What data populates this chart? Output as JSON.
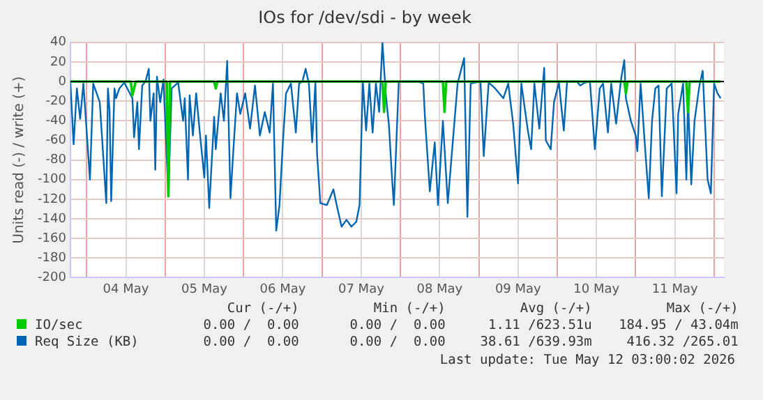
{
  "chart_data": {
    "type": "line",
    "title": "IOs for /dev/sdi - by week",
    "ylabel": "Units read (-) / write (+)",
    "xlim": [
      "2026-05-03T19:00",
      "2026-05-12T03:00"
    ],
    "xticks": [
      {
        "value": "2026-05-04T00:00",
        "label": null
      },
      {
        "value": "2026-05-04T12:00",
        "label": "04 May"
      },
      {
        "value": "2026-05-05T00:00",
        "label": null
      },
      {
        "value": "2026-05-05T12:00",
        "label": "05 May"
      },
      {
        "value": "2026-05-06T00:00",
        "label": null
      },
      {
        "value": "2026-05-06T12:00",
        "label": "06 May"
      },
      {
        "value": "2026-05-07T00:00",
        "label": null
      },
      {
        "value": "2026-05-07T12:00",
        "label": "07 May"
      },
      {
        "value": "2026-05-08T00:00",
        "label": null
      },
      {
        "value": "2026-05-08T12:00",
        "label": "08 May"
      },
      {
        "value": "2026-05-09T00:00",
        "label": null
      },
      {
        "value": "2026-05-09T12:00",
        "label": "09 May"
      },
      {
        "value": "2026-05-10T00:00",
        "label": null
      },
      {
        "value": "2026-05-10T12:00",
        "label": "10 May"
      },
      {
        "value": "2026-05-11T00:00",
        "label": null
      },
      {
        "value": "2026-05-11T12:00",
        "label": "11 May"
      },
      {
        "value": "2026-05-12T00:00",
        "label": null
      }
    ],
    "ylim": [
      -200,
      40
    ],
    "yticks": [
      -200,
      -180,
      -160,
      -140,
      -120,
      -100,
      -80,
      -60,
      -40,
      -20,
      0,
      20,
      40
    ],
    "grid": true,
    "legend": "bottom",
    "marker": "none",
    "line_style": "solid",
    "ref_lines": [
      {
        "axis": "y",
        "value": 0,
        "color": "#000000"
      }
    ],
    "series": [
      {
        "name": "IO/sec",
        "color": "#00cc00",
        "x": [
          "2026-05-03T19:00",
          "2026-05-04T13:30",
          "2026-05-04T14:00",
          "2026-05-04T15:00",
          "2026-05-05T00:30",
          "2026-05-05T01:00",
          "2026-05-05T01:30",
          "2026-05-05T15:00",
          "2026-05-05T15:30",
          "2026-05-05T16:00",
          "2026-05-07T18:30",
          "2026-05-07T19:00",
          "2026-05-07T19:30",
          "2026-05-08T13:00",
          "2026-05-08T13:30",
          "2026-05-08T14:00",
          "2026-05-10T20:30",
          "2026-05-10T21:00",
          "2026-05-10T21:30",
          "2026-05-11T15:30",
          "2026-05-11T16:00",
          "2026-05-11T16:30",
          "2026-05-12T02:00"
        ],
        "values": [
          0,
          0,
          -14,
          0,
          0,
          -117,
          0,
          0,
          -7,
          0,
          0,
          -31,
          0,
          0,
          -31,
          0,
          0,
          -12,
          0,
          0,
          -31,
          0,
          0
        ]
      },
      {
        "name": "Req Size (KB)",
        "color": "#0066b3",
        "x": [
          "2026-05-03T19:00",
          "2026-05-03T20:00",
          "2026-05-03T21:00",
          "2026-05-03T22:00",
          "2026-05-03T23:00",
          "2026-05-04T01:00",
          "2026-05-04T02:00",
          "2026-05-04T04:00",
          "2026-05-04T06:00",
          "2026-05-04T06:30",
          "2026-05-04T07:00",
          "2026-05-04T07:30",
          "2026-05-04T08:30",
          "2026-05-04T09:00",
          "2026-05-04T10:00",
          "2026-05-04T11:30",
          "2026-05-04T14:00",
          "2026-05-04T14:30",
          "2026-05-04T15:30",
          "2026-05-04T16:00",
          "2026-05-04T17:00",
          "2026-05-04T18:00",
          "2026-05-04T19:00",
          "2026-05-04T19:30",
          "2026-05-04T20:30",
          "2026-05-04T21:00",
          "2026-05-04T21:30",
          "2026-05-04T22:30",
          "2026-05-04T23:30",
          "2026-05-05T01:00",
          "2026-05-05T02:00",
          "2026-05-05T04:00",
          "2026-05-05T05:30",
          "2026-05-05T06:00",
          "2026-05-05T07:00",
          "2026-05-05T07:30",
          "2026-05-05T08:30",
          "2026-05-05T09:30",
          "2026-05-05T10:30",
          "2026-05-05T12:00",
          "2026-05-05T12:30",
          "2026-05-05T13:30",
          "2026-05-05T15:00",
          "2026-05-05T15:30",
          "2026-05-05T17:00",
          "2026-05-05T18:00",
          "2026-05-05T19:00",
          "2026-05-05T20:00",
          "2026-05-05T21:00",
          "2026-05-05T22:00",
          "2026-05-05T23:00",
          "2026-05-06T00:30",
          "2026-05-06T02:00",
          "2026-05-06T03:30",
          "2026-05-06T05:00",
          "2026-05-06T06:30",
          "2026-05-06T08:00",
          "2026-05-06T09:00",
          "2026-05-06T10:00",
          "2026-05-06T11:00",
          "2026-05-06T12:00",
          "2026-05-06T13:00",
          "2026-05-06T14:30",
          "2026-05-06T16:00",
          "2026-05-06T17:00",
          "2026-05-06T18:00",
          "2026-05-06T19:00",
          "2026-05-06T20:00",
          "2026-05-06T21:00",
          "2026-05-06T22:00",
          "2026-05-06T22:30",
          "2026-05-06T23:30",
          "2026-05-07T01:30",
          "2026-05-07T03:30",
          "2026-05-07T04:30",
          "2026-05-07T06:00",
          "2026-05-07T07:30",
          "2026-05-07T09:00",
          "2026-05-07T10:30",
          "2026-05-07T11:30",
          "2026-05-07T12:30",
          "2026-05-07T13:30",
          "2026-05-07T14:30",
          "2026-05-07T15:30",
          "2026-05-07T16:30",
          "2026-05-07T17:30",
          "2026-05-07T18:30",
          "2026-05-07T19:30",
          "2026-05-07T20:30",
          "2026-05-07T21:30",
          "2026-05-07T22:00",
          "2026-05-07T23:30",
          "2026-05-08T05:30",
          "2026-05-08T07:00",
          "2026-05-08T07:30",
          "2026-05-08T09:00",
          "2026-05-08T10:30",
          "2026-05-08T11:30",
          "2026-05-08T13:00",
          "2026-05-08T14:30",
          "2026-05-08T15:30",
          "2026-05-08T17:30",
          "2026-05-08T19:30",
          "2026-05-08T20:30",
          "2026-05-08T21:30",
          "2026-05-09T00:30",
          "2026-05-09T01:30",
          "2026-05-09T03:00",
          "2026-05-09T05:00",
          "2026-05-09T07:30",
          "2026-05-09T09:00",
          "2026-05-09T10:30",
          "2026-05-09T12:00",
          "2026-05-09T13:00",
          "2026-05-09T15:00",
          "2026-05-09T16:00",
          "2026-05-09T17:00",
          "2026-05-09T18:30",
          "2026-05-09T20:00",
          "2026-05-09T20:30",
          "2026-05-09T22:00",
          "2026-05-09T23:00",
          "2026-05-10T00:30",
          "2026-05-10T02:00",
          "2026-05-10T03:00",
          "2026-05-10T06:00",
          "2026-05-10T07:00",
          "2026-05-10T08:30",
          "2026-05-10T10:00",
          "2026-05-10T11:30",
          "2026-05-10T13:00",
          "2026-05-10T14:00",
          "2026-05-10T15:30",
          "2026-05-10T16:30",
          "2026-05-10T18:00",
          "2026-05-10T19:30",
          "2026-05-10T20:30",
          "2026-05-10T21:00",
          "2026-05-10T22:30",
          "2026-05-11T00:00",
          "2026-05-11T00:30",
          "2026-05-11T01:30",
          "2026-05-11T03:00",
          "2026-05-11T04:00",
          "2026-05-11T05:00",
          "2026-05-11T06:00",
          "2026-05-11T07:00",
          "2026-05-11T08:00",
          "2026-05-11T09:30",
          "2026-05-11T11:00",
          "2026-05-11T12:30",
          "2026-05-11T13:00",
          "2026-05-11T14:30",
          "2026-05-11T15:30",
          "2026-05-11T16:00",
          "2026-05-11T17:00",
          "2026-05-11T18:00",
          "2026-05-11T19:30",
          "2026-05-11T20:30",
          "2026-05-11T22:00",
          "2026-05-11T23:00",
          "2026-05-12T00:00",
          "2026-05-12T01:00",
          "2026-05-12T02:00"
        ],
        "values": [
          0,
          -64,
          -7,
          -38,
          -2,
          -100,
          -2,
          -21,
          -124,
          -7,
          -29,
          -122,
          -7,
          -17,
          -7,
          -1,
          -17,
          -57,
          -21,
          -69,
          -4,
          0,
          13,
          -40,
          -12,
          -90,
          5,
          -21,
          2,
          -117,
          -7,
          -1,
          -40,
          -17,
          -100,
          -14,
          -55,
          -12,
          -48,
          -98,
          -55,
          -129,
          -36,
          -69,
          -12,
          -40,
          21,
          -119,
          -64,
          -12,
          -33,
          -12,
          -48,
          -4,
          -55,
          -31,
          -52,
          -2,
          -152,
          -126,
          -64,
          -12,
          -2,
          -52,
          -2,
          0,
          13,
          -2,
          -62,
          0,
          -74,
          -124,
          -126,
          -110,
          -126,
          -148,
          -141,
          -148,
          -143,
          -126,
          0,
          -50,
          -2,
          -52,
          -2,
          -31,
          40,
          -12,
          -45,
          -102,
          -126,
          0,
          0,
          -2,
          -36,
          -112,
          -62,
          -126,
          -40,
          -124,
          -83,
          -2,
          24,
          -138,
          -2,
          0,
          -76,
          -1,
          -7,
          -17,
          -2,
          -43,
          -104,
          -2,
          -50,
          -69,
          -2,
          -48,
          14,
          -60,
          -69,
          -21,
          -1,
          -50,
          0,
          0,
          -4,
          -1,
          0,
          -69,
          -7,
          -2,
          -52,
          -2,
          -43,
          2,
          22,
          -17,
          -40,
          -55,
          -71,
          -2,
          -74,
          -119,
          -40,
          -7,
          -4,
          -117,
          -7,
          -2,
          -114,
          -33,
          -2,
          -100,
          -17,
          -105,
          -40,
          -4,
          11,
          -100,
          -114,
          -2,
          -12,
          -17
        ]
      }
    ],
    "annotations": [
      "Cur (-/+)",
      "Min (-/+)",
      "Avg (-/+)",
      "Max (-/+)",
      "0.00 /  0.00",
      "0.00 /  0.00",
      "1.11 /623.51u",
      "184.95 / 43.04m",
      "0.00 /  0.00",
      "0.00 /  0.00",
      "38.61 /639.93m",
      "416.32 /265.01",
      "Last update: Tue May 12 03:00:02 2026"
    ]
  }
}
